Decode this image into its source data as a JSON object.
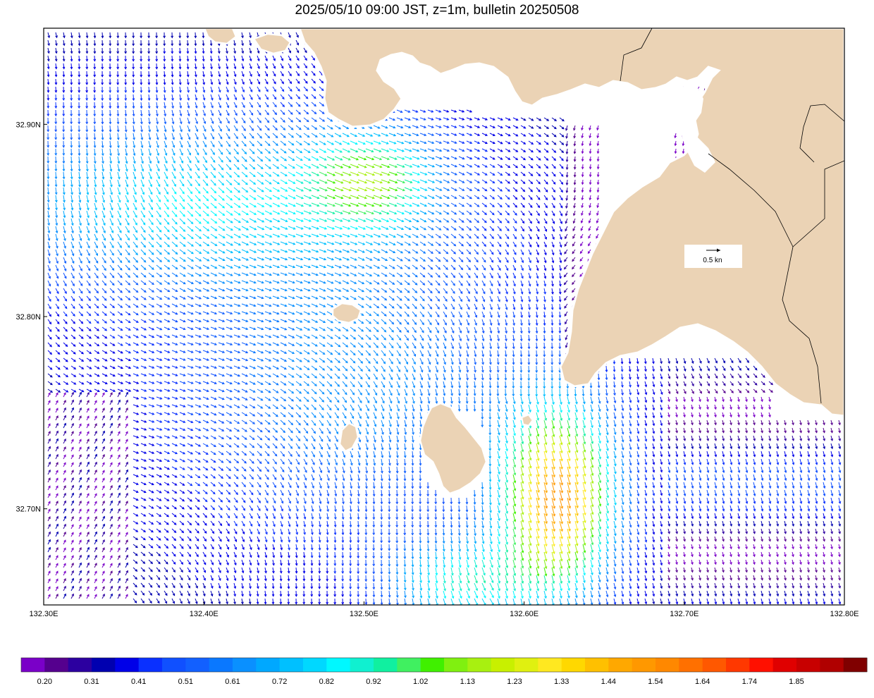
{
  "title": "2025/05/10 09:00 JST, z=1m, bulletin 20250508",
  "map": {
    "lon_range": [
      132.3,
      132.8
    ],
    "lat_range": [
      32.65,
      32.95
    ],
    "land_color": "#ebd3b5",
    "coast_color": "#ffffff",
    "x_ticks": [
      {
        "value": 132.3,
        "label": "132.30E"
      },
      {
        "value": 132.4,
        "label": "132.40E"
      },
      {
        "value": 132.5,
        "label": "132.50E"
      },
      {
        "value": 132.6,
        "label": "132.60E"
      },
      {
        "value": 132.7,
        "label": "132.70E"
      },
      {
        "value": 132.8,
        "label": "132.80E"
      }
    ],
    "y_ticks": [
      {
        "value": 32.9,
        "label": "32.90N"
      },
      {
        "value": 32.8,
        "label": "32.80N"
      },
      {
        "value": 32.7,
        "label": "32.70N"
      }
    ],
    "reference_vector": {
      "label": "0.5 kn",
      "speed_kn": 0.5
    },
    "islands": [
      {
        "name": "okinoshima",
        "lon": 132.545,
        "lat": 32.735
      },
      {
        "name": "biroujima",
        "lon": 132.52,
        "lat": 32.741
      },
      {
        "name": "small-islet",
        "lon": 132.495,
        "lat": 32.8
      },
      {
        "name": "islet-east",
        "lon": 132.603,
        "lat": 32.74
      }
    ]
  },
  "colorbar": {
    "colors": [
      "#7a00c8",
      "#55008e",
      "#2c00a0",
      "#0000b0",
      "#0000e8",
      "#0a30ff",
      "#1050ff",
      "#1260ff",
      "#0a78ff",
      "#0a90ff",
      "#00a8ff",
      "#00c0ff",
      "#00d8ff",
      "#00f8ff",
      "#10f0d0",
      "#10f0a0",
      "#40f060",
      "#40f000",
      "#80f010",
      "#a8f010",
      "#c8f000",
      "#e0f010",
      "#ffe820",
      "#ffd800",
      "#ffc000",
      "#ffa800",
      "#ff9800",
      "#ff8800",
      "#ff7000",
      "#ff5800",
      "#ff3800",
      "#ff1000",
      "#e00000",
      "#c80000",
      "#b00000",
      "#800000"
    ],
    "labels": [
      "0.20",
      "0.31",
      "0.41",
      "0.51",
      "0.61",
      "0.72",
      "0.82",
      "0.92",
      "1.02",
      "1.13",
      "1.23",
      "1.33",
      "1.44",
      "1.54",
      "1.64",
      "1.74",
      "1.85"
    ]
  }
}
